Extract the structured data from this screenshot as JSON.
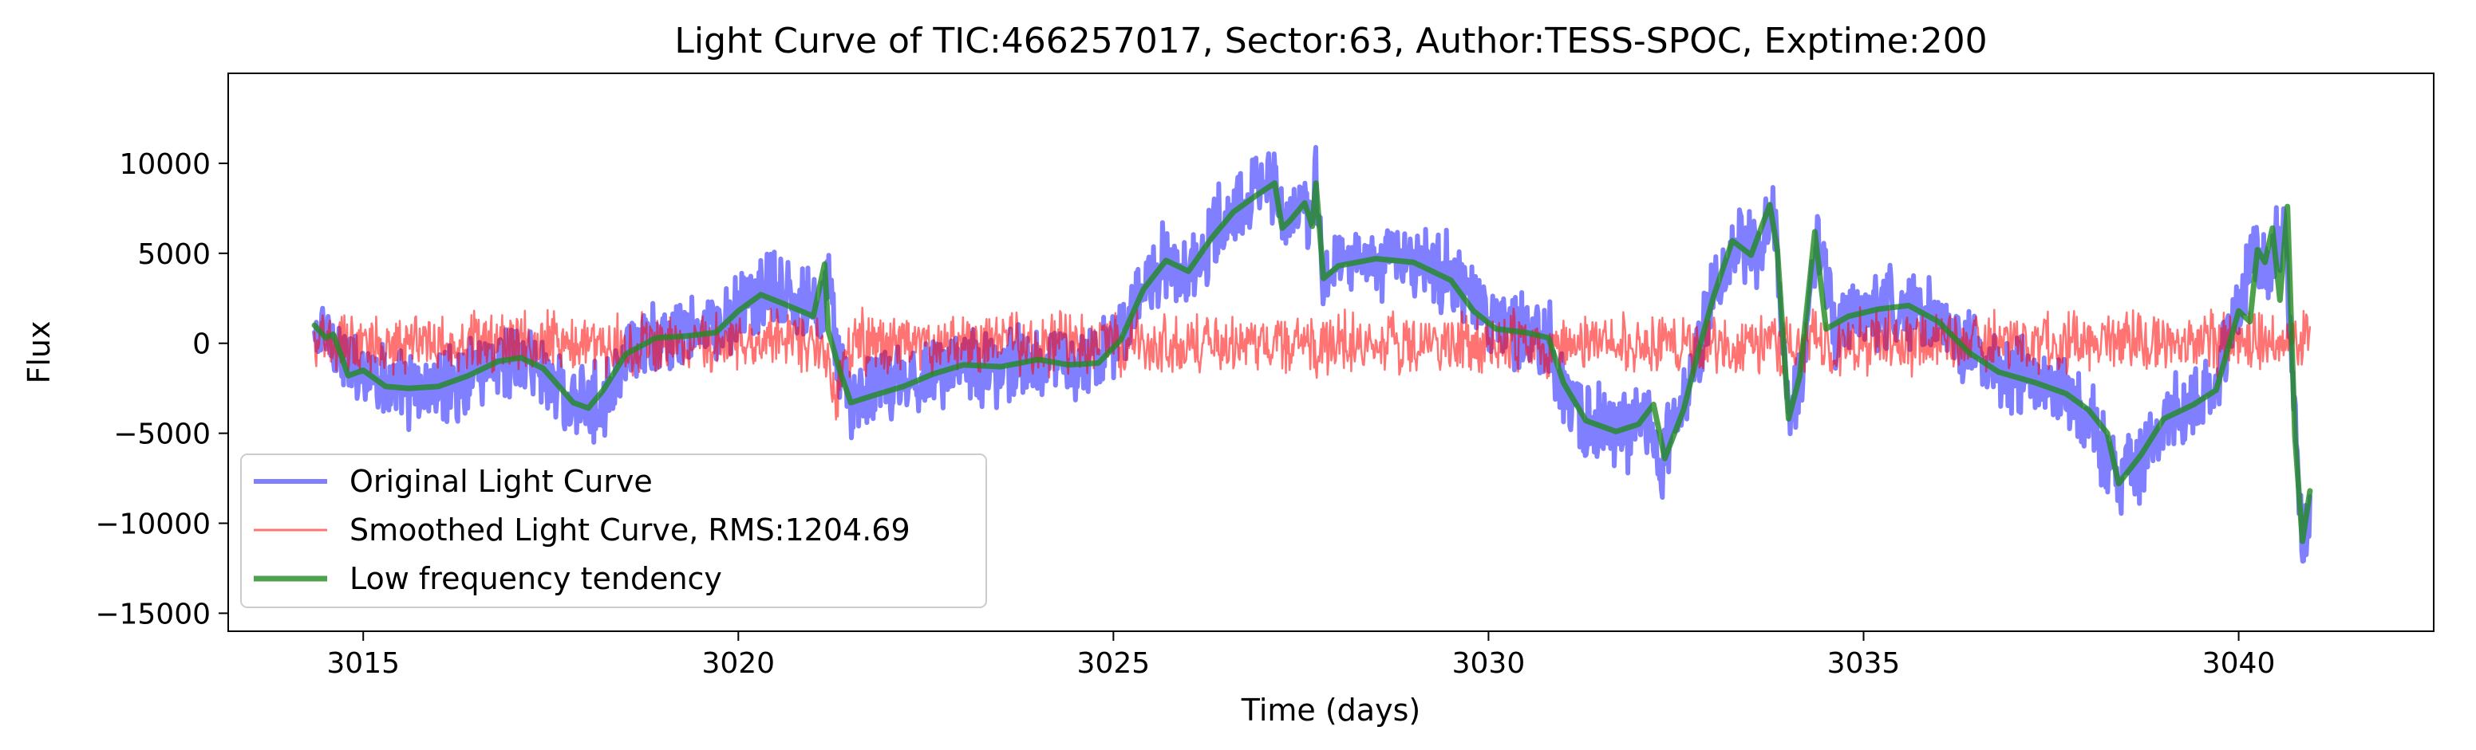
{
  "chart_data": {
    "type": "line",
    "title": "Light Curve of TIC:466257017, Sector:63, Author:TESS-SPOC, Exptime:200",
    "xlabel": "Time (days)",
    "ylabel": "Flux",
    "xlim": [
      3013.2,
      3042.6
    ],
    "ylim": [
      -16000,
      15000
    ],
    "xticks": [
      3015,
      3020,
      3025,
      3030,
      3035,
      3040
    ],
    "yticks": [
      -15000,
      -10000,
      -5000,
      0,
      5000,
      10000
    ],
    "grid": false,
    "legend_position": "lower-left",
    "series": [
      {
        "name": "Original Light Curve",
        "color": "#0000ff",
        "opacity": 0.5,
        "linewidth": 6,
        "trend": [
          [
            3014.35,
            0
          ],
          [
            3014.5,
            500
          ],
          [
            3014.7,
            -500
          ],
          [
            3014.85,
            -1500
          ],
          [
            3015.0,
            -1200
          ],
          [
            3015.3,
            -2200
          ],
          [
            3015.6,
            -2700
          ],
          [
            3016.0,
            -2600
          ],
          [
            3016.3,
            -1900
          ],
          [
            3016.6,
            -1000
          ],
          [
            3017.0,
            -700
          ],
          [
            3017.4,
            -1500
          ],
          [
            3017.8,
            -3300
          ],
          [
            3018.0,
            -3700
          ],
          [
            3018.3,
            -2400
          ],
          [
            3018.6,
            -500
          ],
          [
            3019.0,
            300
          ],
          [
            3019.4,
            500
          ],
          [
            3019.8,
            800
          ],
          [
            3020.1,
            2200
          ],
          [
            3020.4,
            3000
          ],
          [
            3020.8,
            2200
          ],
          [
            3021.1,
            1700
          ],
          [
            3021.2,
            3800
          ],
          [
            3021.3,
            -200
          ],
          [
            3021.5,
            -3200
          ],
          [
            3022.0,
            -2200
          ],
          [
            3022.5,
            -1700
          ],
          [
            3023.0,
            -1100
          ],
          [
            3023.5,
            -1300
          ],
          [
            3024.0,
            -900
          ],
          [
            3024.5,
            -1200
          ],
          [
            3024.8,
            -1000
          ],
          [
            3025.0,
            -200
          ],
          [
            3025.3,
            2800
          ],
          [
            3025.7,
            4600
          ],
          [
            3026.0,
            4000
          ],
          [
            3026.4,
            6500
          ],
          [
            3026.8,
            8100
          ],
          [
            3027.1,
            9200
          ],
          [
            3027.3,
            6500
          ],
          [
            3027.5,
            7800
          ],
          [
            3027.6,
            6600
          ],
          [
            3027.7,
            9100
          ],
          [
            3027.8,
            3500
          ],
          [
            3028.0,
            4400
          ],
          [
            3028.5,
            4700
          ],
          [
            3029.0,
            4600
          ],
          [
            3029.5,
            3700
          ],
          [
            3030.0,
            1200
          ],
          [
            3030.4,
            600
          ],
          [
            3030.8,
            400
          ],
          [
            3031.0,
            -2500
          ],
          [
            3031.4,
            -4500
          ],
          [
            3031.8,
            -5000
          ],
          [
            3032.1,
            -4200
          ],
          [
            3032.3,
            -6500
          ],
          [
            3032.6,
            -3500
          ],
          [
            3033.0,
            2800
          ],
          [
            3033.3,
            5800
          ],
          [
            3033.6,
            4800
          ],
          [
            3033.8,
            7500
          ],
          [
            3034.0,
            -4000
          ],
          [
            3034.2,
            -1500
          ],
          [
            3034.4,
            6300
          ],
          [
            3034.6,
            700
          ],
          [
            3035.0,
            1800
          ],
          [
            3035.5,
            2000
          ],
          [
            3036.0,
            1300
          ],
          [
            3036.5,
            -600
          ],
          [
            3037.0,
            -1700
          ],
          [
            3037.5,
            -2300
          ],
          [
            3038.0,
            -3800
          ],
          [
            3038.4,
            -7800
          ],
          [
            3038.8,
            -6000
          ],
          [
            3039.2,
            -3700
          ],
          [
            3039.6,
            -2700
          ],
          [
            3040.0,
            1500
          ],
          [
            3040.2,
            5000
          ],
          [
            3040.4,
            3600
          ],
          [
            3040.6,
            7200
          ],
          [
            3040.75,
            -5000
          ],
          [
            3040.85,
            -12000
          ],
          [
            3040.95,
            -9500
          ]
        ],
        "noise_amplitude": 1800
      },
      {
        "name": "Smoothed Light Curve, RMS:1204.69",
        "color": "#ff0000",
        "opacity": 0.55,
        "linewidth": 2.5,
        "trend": [
          [
            3014.35,
            0
          ],
          [
            3021.1,
            0
          ],
          [
            3021.3,
            -2800
          ],
          [
            3021.5,
            0
          ],
          [
            3027.5,
            0
          ],
          [
            3027.7,
            -400
          ],
          [
            3027.8,
            0
          ],
          [
            3040.95,
            0
          ]
        ],
        "noise_amplitude": 1450
      },
      {
        "name": "Low frequency tendency",
        "color": "#228b22",
        "opacity": 0.8,
        "linewidth": 7,
        "trend": [
          [
            3014.35,
            1000
          ],
          [
            3014.5,
            300
          ],
          [
            3014.6,
            500
          ],
          [
            3014.7,
            -600
          ],
          [
            3014.8,
            -1800
          ],
          [
            3015.0,
            -1500
          ],
          [
            3015.3,
            -2400
          ],
          [
            3015.6,
            -2500
          ],
          [
            3016.0,
            -2400
          ],
          [
            3016.4,
            -1800
          ],
          [
            3016.8,
            -1000
          ],
          [
            3017.1,
            -800
          ],
          [
            3017.4,
            -1400
          ],
          [
            3017.8,
            -3300
          ],
          [
            3018.0,
            -3600
          ],
          [
            3018.2,
            -2600
          ],
          [
            3018.5,
            -600
          ],
          [
            3018.9,
            300
          ],
          [
            3019.3,
            400
          ],
          [
            3019.7,
            600
          ],
          [
            3020.0,
            1800
          ],
          [
            3020.3,
            2700
          ],
          [
            3020.6,
            2200
          ],
          [
            3021.0,
            1500
          ],
          [
            3021.15,
            4400
          ],
          [
            3021.2,
            700
          ],
          [
            3021.35,
            -1500
          ],
          [
            3021.5,
            -3300
          ],
          [
            3021.8,
            -2900
          ],
          [
            3022.2,
            -2400
          ],
          [
            3022.6,
            -1700
          ],
          [
            3023.0,
            -1200
          ],
          [
            3023.5,
            -1300
          ],
          [
            3024.0,
            -900
          ],
          [
            3024.4,
            -1200
          ],
          [
            3024.8,
            -1100
          ],
          [
            3025.1,
            200
          ],
          [
            3025.4,
            3000
          ],
          [
            3025.7,
            4600
          ],
          [
            3026.0,
            4000
          ],
          [
            3026.3,
            5800
          ],
          [
            3026.6,
            7300
          ],
          [
            3026.9,
            8200
          ],
          [
            3027.15,
            8900
          ],
          [
            3027.25,
            6400
          ],
          [
            3027.35,
            6800
          ],
          [
            3027.55,
            7800
          ],
          [
            3027.65,
            6500
          ],
          [
            3027.7,
            8900
          ],
          [
            3027.8,
            3600
          ],
          [
            3028.0,
            4300
          ],
          [
            3028.5,
            4700
          ],
          [
            3029.0,
            4500
          ],
          [
            3029.5,
            3500
          ],
          [
            3029.8,
            1800
          ],
          [
            3030.1,
            800
          ],
          [
            3030.5,
            600
          ],
          [
            3030.8,
            300
          ],
          [
            3031.0,
            -2200
          ],
          [
            3031.3,
            -4300
          ],
          [
            3031.7,
            -4900
          ],
          [
            3032.0,
            -4500
          ],
          [
            3032.2,
            -3400
          ],
          [
            3032.35,
            -6400
          ],
          [
            3032.6,
            -3700
          ],
          [
            3032.8,
            -400
          ],
          [
            3033.0,
            2600
          ],
          [
            3033.25,
            5700
          ],
          [
            3033.5,
            4900
          ],
          [
            3033.75,
            7700
          ],
          [
            3033.85,
            5200
          ],
          [
            3034.0,
            -4200
          ],
          [
            3034.15,
            -1800
          ],
          [
            3034.35,
            6200
          ],
          [
            3034.5,
            800
          ],
          [
            3034.8,
            1500
          ],
          [
            3035.2,
            1900
          ],
          [
            3035.6,
            2100
          ],
          [
            3036.0,
            1200
          ],
          [
            3036.4,
            -500
          ],
          [
            3036.8,
            -1600
          ],
          [
            3037.3,
            -2200
          ],
          [
            3037.7,
            -2800
          ],
          [
            3038.0,
            -3700
          ],
          [
            3038.25,
            -5000
          ],
          [
            3038.4,
            -7800
          ],
          [
            3038.7,
            -6200
          ],
          [
            3039.0,
            -4200
          ],
          [
            3039.4,
            -3400
          ],
          [
            3039.7,
            -2600
          ],
          [
            3040.0,
            1800
          ],
          [
            3040.15,
            1200
          ],
          [
            3040.25,
            5200
          ],
          [
            3040.35,
            4500
          ],
          [
            3040.45,
            6400
          ],
          [
            3040.55,
            2400
          ],
          [
            3040.65,
            7600
          ],
          [
            3040.75,
            -5200
          ],
          [
            3040.85,
            -11000
          ],
          [
            3040.95,
            -8200
          ]
        ],
        "noise_amplitude": 0
      }
    ]
  }
}
